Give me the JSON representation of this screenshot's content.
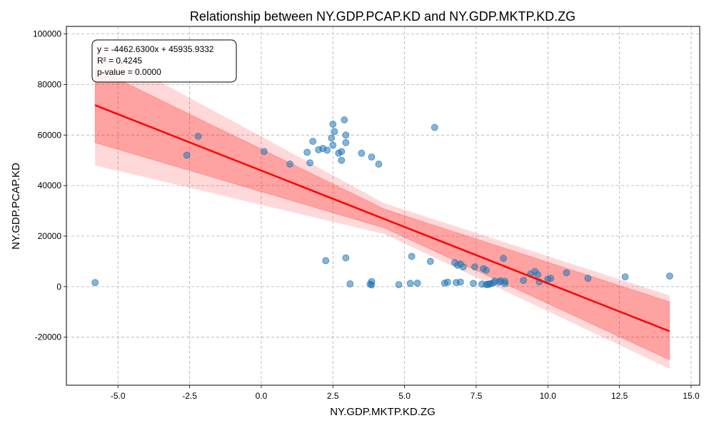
{
  "chart_data": {
    "type": "scatter",
    "title": "Relationship between NY.GDP.PCAP.KD and NY.GDP.MKTP.KD.ZG",
    "xlabel": "NY.GDP.MKTP.KD.ZG",
    "ylabel": "NY.GDP.PCAP.KD",
    "xlim": [
      -6.8,
      15.3
    ],
    "ylim": [
      -39000,
      103000
    ],
    "xticks": [
      -5.0,
      -2.5,
      0.0,
      2.5,
      5.0,
      7.5,
      10.0,
      12.5,
      15.0
    ],
    "xtick_labels": [
      "-5.0",
      "-2.5",
      "0.0",
      "2.5",
      "5.0",
      "7.5",
      "10.0",
      "12.5",
      "15.0"
    ],
    "yticks": [
      -20000,
      0,
      20000,
      40000,
      60000,
      80000,
      100000
    ],
    "ytick_labels": [
      "-20000",
      "0",
      "20000",
      "40000",
      "60000",
      "80000",
      "100000"
    ],
    "grid": true,
    "grid_style": "dashed",
    "point_color": "#1f77b4",
    "fit_color": "#ff0000",
    "band_color": "#ff0000",
    "stats": {
      "equation": "y = -4462.6300x + 45935.9332",
      "r_squared": "R² = 0.4245",
      "p_value": "p-value = 0.0000"
    },
    "regression": {
      "slope": -4462.63,
      "intercept": 45935.9332,
      "x_range": [
        -5.8,
        14.25
      ]
    },
    "confidence_band": {
      "x": [
        -5.8,
        4.3,
        14.25
      ],
      "lower": [
        57000,
        23200,
        -29000
      ],
      "upper": [
        86500,
        30700,
        -6000
      ]
    },
    "prediction_band": {
      "x": [
        -5.8,
        4.3,
        14.25
      ],
      "lower": [
        48000,
        20800,
        -32500
      ],
      "upper": [
        95000,
        33000,
        -3500
      ]
    },
    "points": [
      [
        -5.8,
        1600
      ],
      [
        -2.6,
        52000
      ],
      [
        -2.2,
        59500
      ],
      [
        0.1,
        53500
      ],
      [
        1.0,
        48500
      ],
      [
        1.6,
        53200
      ],
      [
        1.7,
        49000
      ],
      [
        1.8,
        57500
      ],
      [
        2.0,
        54200
      ],
      [
        2.15,
        54700
      ],
      [
        2.3,
        54000
      ],
      [
        2.45,
        58800
      ],
      [
        2.5,
        64300
      ],
      [
        2.55,
        61400
      ],
      [
        2.5,
        56000
      ],
      [
        2.7,
        52800
      ],
      [
        2.8,
        53500
      ],
      [
        2.8,
        50000
      ],
      [
        2.9,
        66000
      ],
      [
        2.95,
        57000
      ],
      [
        2.95,
        60000
      ],
      [
        3.5,
        52800
      ],
      [
        3.85,
        51300
      ],
      [
        4.1,
        48500
      ],
      [
        6.05,
        63000
      ],
      [
        2.25,
        10300
      ],
      [
        2.95,
        11400
      ],
      [
        3.1,
        1100
      ],
      [
        3.8,
        1000
      ],
      [
        3.85,
        700
      ],
      [
        3.85,
        2000
      ],
      [
        4.8,
        800
      ],
      [
        5.2,
        1300
      ],
      [
        5.45,
        1400
      ],
      [
        5.25,
        12000
      ],
      [
        5.9,
        10000
      ],
      [
        6.4,
        1400
      ],
      [
        6.5,
        1800
      ],
      [
        6.75,
        9500
      ],
      [
        6.8,
        1600
      ],
      [
        6.85,
        8500
      ],
      [
        6.95,
        9000
      ],
      [
        6.95,
        1800
      ],
      [
        7.05,
        7800
      ],
      [
        7.4,
        1300
      ],
      [
        7.45,
        7800
      ],
      [
        7.7,
        1000
      ],
      [
        7.75,
        7100
      ],
      [
        7.85,
        6500
      ],
      [
        7.85,
        800
      ],
      [
        7.9,
        900
      ],
      [
        7.95,
        900
      ],
      [
        8.0,
        1200
      ],
      [
        8.1,
        1500
      ],
      [
        8.15,
        2200
      ],
      [
        8.3,
        1800
      ],
      [
        8.35,
        2300
      ],
      [
        8.45,
        11200
      ],
      [
        8.5,
        1200
      ],
      [
        8.5,
        2100
      ],
      [
        9.15,
        2500
      ],
      [
        9.4,
        5000
      ],
      [
        9.55,
        6000
      ],
      [
        9.65,
        4800
      ],
      [
        9.7,
        1900
      ],
      [
        10.0,
        3000
      ],
      [
        10.1,
        3300
      ],
      [
        10.65,
        5500
      ],
      [
        11.4,
        3300
      ],
      [
        12.7,
        3900
      ],
      [
        14.25,
        4200
      ]
    ]
  }
}
